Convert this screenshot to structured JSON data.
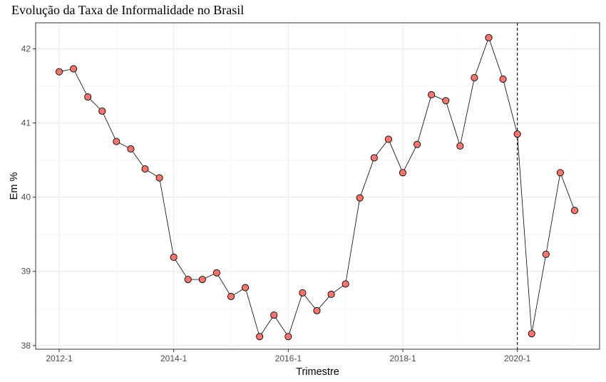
{
  "chart_data": {
    "type": "line",
    "title": "Evolução da Taxa de Informalidade no Brasil",
    "xlabel": "Trimestre",
    "ylabel": "Em %",
    "x_ticks": [
      "2012-1",
      "2014-1",
      "2016-1",
      "2018-1",
      "2020-1"
    ],
    "y_ticks": [
      38,
      39,
      40,
      41,
      42
    ],
    "ylim": [
      37.95,
      42.35
    ],
    "grid": true,
    "vline_at": "2020-1",
    "point_color": "#F8766D",
    "series": [
      {
        "x": [
          "2012-1",
          "2012-2",
          "2012-3",
          "2012-4",
          "2013-1",
          "2013-2",
          "2013-3",
          "2013-4",
          "2014-1",
          "2014-2",
          "2014-3",
          "2014-4",
          "2015-1",
          "2015-2",
          "2015-3",
          "2015-4",
          "2016-1",
          "2016-2",
          "2016-3",
          "2016-4",
          "2017-1",
          "2017-2",
          "2017-3",
          "2017-4",
          "2018-1",
          "2018-2",
          "2018-3",
          "2018-4",
          "2019-1",
          "2019-2",
          "2019-3",
          "2019-4",
          "2020-1",
          "2020-2",
          "2020-3",
          "2020-4",
          "2021-1"
        ],
        "values": [
          41.69,
          41.73,
          41.35,
          41.16,
          40.75,
          40.65,
          40.38,
          40.26,
          39.19,
          38.89,
          38.89,
          38.98,
          38.66,
          38.78,
          38.12,
          38.41,
          38.12,
          38.71,
          38.47,
          38.69,
          38.83,
          39.99,
          40.53,
          40.78,
          40.33,
          40.71,
          41.38,
          41.3,
          40.69,
          41.61,
          42.15,
          41.59,
          40.85,
          38.16,
          39.23,
          40.33,
          39.82
        ]
      }
    ]
  }
}
